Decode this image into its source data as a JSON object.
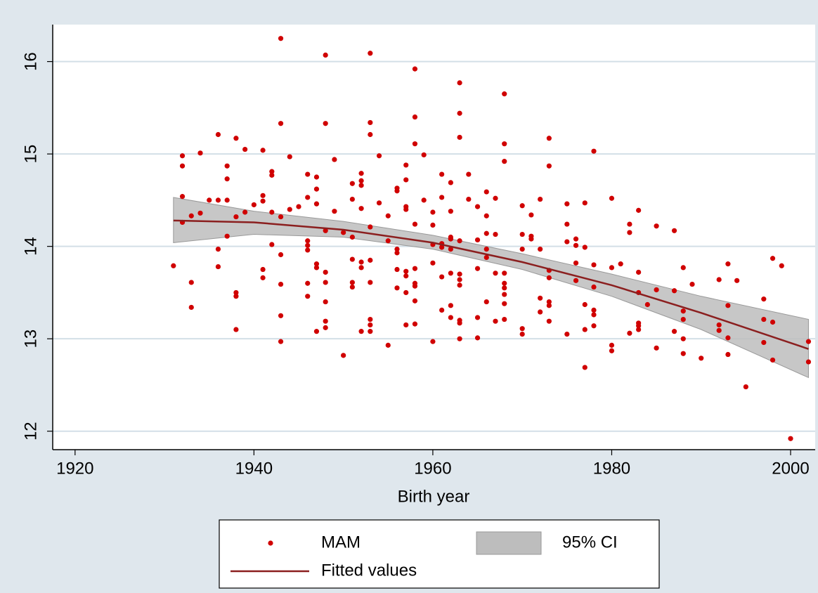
{
  "chart_data": {
    "type": "scatter",
    "x_label": "Birth year",
    "xlim": [
      1917.5,
      2002.75
    ],
    "ylim": [
      11.8,
      16.4
    ],
    "xticks": [
      1920,
      1940,
      1960,
      1980,
      2000
    ],
    "yticks": [
      12,
      13,
      14,
      15,
      16
    ],
    "grid": true,
    "series": [
      {
        "name": "MAM",
        "type": "scatter",
        "color": "#d00000",
        "x": [
          1931,
          1932,
          1932,
          1932,
          1932,
          1933,
          1933,
          1933,
          1934,
          1934,
          1935,
          1936,
          1936,
          1936,
          1936,
          1937,
          1937,
          1937,
          1937,
          1938,
          1938,
          1938,
          1938,
          1938,
          1939,
          1939,
          1940,
          1941,
          1941,
          1941,
          1941,
          1941,
          1942,
          1942,
          1942,
          1942,
          1943,
          1943,
          1943,
          1943,
          1943,
          1943,
          1943,
          1944,
          1944,
          1945,
          1946,
          1946,
          1946,
          1946,
          1946,
          1946,
          1946,
          1947,
          1947,
          1947,
          1947,
          1947,
          1947,
          1948,
          1948,
          1948,
          1948,
          1948,
          1948,
          1948,
          1948,
          1949,
          1949,
          1950,
          1950,
          1951,
          1951,
          1951,
          1951,
          1951,
          1951,
          1952,
          1952,
          1952,
          1952,
          1952,
          1952,
          1952,
          1953,
          1953,
          1953,
          1953,
          1953,
          1953,
          1953,
          1953,
          1953,
          1954,
          1954,
          1955,
          1955,
          1955,
          1956,
          1956,
          1956,
          1956,
          1956,
          1956,
          1957,
          1957,
          1957,
          1957,
          1957,
          1957,
          1957,
          1957,
          1958,
          1958,
          1958,
          1958,
          1958,
          1958,
          1958,
          1958,
          1958,
          1959,
          1959,
          1960,
          1960,
          1960,
          1960,
          1960,
          1961,
          1961,
          1961,
          1961,
          1961,
          1961,
          1962,
          1962,
          1962,
          1962,
          1962,
          1962,
          1962,
          1962,
          1963,
          1963,
          1963,
          1963,
          1963,
          1963,
          1963,
          1963,
          1963,
          1963,
          1964,
          1964,
          1965,
          1965,
          1965,
          1965,
          1965,
          1966,
          1966,
          1966,
          1966,
          1966,
          1966,
          1967,
          1967,
          1967,
          1967,
          1968,
          1968,
          1968,
          1968,
          1968,
          1968,
          1968,
          1968,
          1968,
          1970,
          1970,
          1970,
          1970,
          1970,
          1971,
          1971,
          1971,
          1972,
          1972,
          1972,
          1972,
          1973,
          1973,
          1973,
          1973,
          1973,
          1973,
          1973,
          1975,
          1975,
          1975,
          1975,
          1976,
          1976,
          1976,
          1976,
          1977,
          1977,
          1977,
          1977,
          1977,
          1978,
          1978,
          1978,
          1978,
          1978,
          1978,
          1980,
          1980,
          1980,
          1980,
          1981,
          1982,
          1982,
          1982,
          1983,
          1983,
          1983,
          1983,
          1983,
          1983,
          1984,
          1985,
          1985,
          1985,
          1987,
          1987,
          1987,
          1988,
          1988,
          1988,
          1988,
          1988,
          1989,
          1990,
          1992,
          1992,
          1992,
          1993,
          1993,
          1993,
          1993,
          1994,
          1995,
          1997,
          1997,
          1997,
          1998,
          1998,
          1998,
          1999,
          2000,
          2002,
          2002
        ],
        "values": [
          13.79,
          14.98,
          14.87,
          14.54,
          14.26,
          14.33,
          13.61,
          13.34,
          15.01,
          14.36,
          14.5,
          15.21,
          14.5,
          13.97,
          13.78,
          14.87,
          14.73,
          14.5,
          14.11,
          15.17,
          14.32,
          13.5,
          13.46,
          13.1,
          15.05,
          14.37,
          14.45,
          15.04,
          14.55,
          14.49,
          13.75,
          13.66,
          14.81,
          14.77,
          14.37,
          14.02,
          16.25,
          15.33,
          14.32,
          13.91,
          13.59,
          13.25,
          12.97,
          14.97,
          14.4,
          14.43,
          14.78,
          14.53,
          14.06,
          14.01,
          13.96,
          13.6,
          13.46,
          14.75,
          14.62,
          14.46,
          13.81,
          13.77,
          13.08,
          16.07,
          15.33,
          14.17,
          13.72,
          13.61,
          13.4,
          13.19,
          13.12,
          14.94,
          14.38,
          14.15,
          12.82,
          14.68,
          14.51,
          14.1,
          13.86,
          13.61,
          13.56,
          14.79,
          14.71,
          14.66,
          14.41,
          13.83,
          13.77,
          13.08,
          16.09,
          15.34,
          15.21,
          14.21,
          13.85,
          13.61,
          13.21,
          13.15,
          13.08,
          14.98,
          14.47,
          14.33,
          14.06,
          12.93,
          14.63,
          14.6,
          13.97,
          13.93,
          13.55,
          13.75,
          14.88,
          14.72,
          14.43,
          14.4,
          13.73,
          13.68,
          13.5,
          13.15,
          15.92,
          15.4,
          15.11,
          14.24,
          13.76,
          13.6,
          13.57,
          13.41,
          13.16,
          14.99,
          14.5,
          14.37,
          14.23,
          14.02,
          13.82,
          12.97,
          14.78,
          14.53,
          14.03,
          13.99,
          13.67,
          13.31,
          14.69,
          14.38,
          14.1,
          14.08,
          13.97,
          13.71,
          13.36,
          13.23,
          15.77,
          15.44,
          15.18,
          14.06,
          13.7,
          13.64,
          13.58,
          13.2,
          13.17,
          13.0,
          14.78,
          14.51,
          14.43,
          14.07,
          13.76,
          13.23,
          13.01,
          14.59,
          14.33,
          14.14,
          13.97,
          13.88,
          13.4,
          14.52,
          14.13,
          13.71,
          13.19,
          15.65,
          15.11,
          14.92,
          13.71,
          13.6,
          13.55,
          13.48,
          13.38,
          13.21,
          14.44,
          14.13,
          13.97,
          13.11,
          13.05,
          14.34,
          14.11,
          14.08,
          14.51,
          13.97,
          13.44,
          13.29,
          15.17,
          14.87,
          13.74,
          13.66,
          13.4,
          13.36,
          13.19,
          14.46,
          14.24,
          14.05,
          13.05,
          14.08,
          14.01,
          13.82,
          13.63,
          14.47,
          13.99,
          13.37,
          13.1,
          12.69,
          15.03,
          13.8,
          13.56,
          13.31,
          13.26,
          13.14,
          14.52,
          13.77,
          12.93,
          12.87,
          13.81,
          14.24,
          14.15,
          13.06,
          14.39,
          13.72,
          13.5,
          13.17,
          13.14,
          13.1,
          13.37,
          14.22,
          13.53,
          12.9,
          14.17,
          13.52,
          13.08,
          13.77,
          13.3,
          13.21,
          13.0,
          12.84,
          13.59,
          12.79,
          13.64,
          13.15,
          13.09,
          13.81,
          13.36,
          13.01,
          12.83,
          13.63,
          12.48,
          13.43,
          13.21,
          12.96,
          13.87,
          13.18,
          12.77,
          13.79,
          11.92,
          12.97,
          12.75
        ]
      },
      {
        "name": "95% CI",
        "type": "band",
        "color": "#bdbdbd",
        "x": [
          1931,
          1940,
          1950,
          1960,
          1970,
          1980,
          1990,
          2002
        ],
        "low": [
          14.04,
          14.13,
          14.1,
          13.97,
          13.75,
          13.46,
          13.1,
          12.58
        ],
        "high": [
          14.53,
          14.38,
          14.27,
          14.12,
          13.92,
          13.7,
          13.46,
          13.21
        ]
      },
      {
        "name": "Fitted values",
        "type": "line",
        "color": "#8b1f1f",
        "x": [
          1931,
          1940,
          1950,
          1960,
          1970,
          1980,
          1990,
          2002
        ],
        "values": [
          14.28,
          14.26,
          14.18,
          14.04,
          13.83,
          13.58,
          13.28,
          12.89
        ]
      }
    ]
  }
}
